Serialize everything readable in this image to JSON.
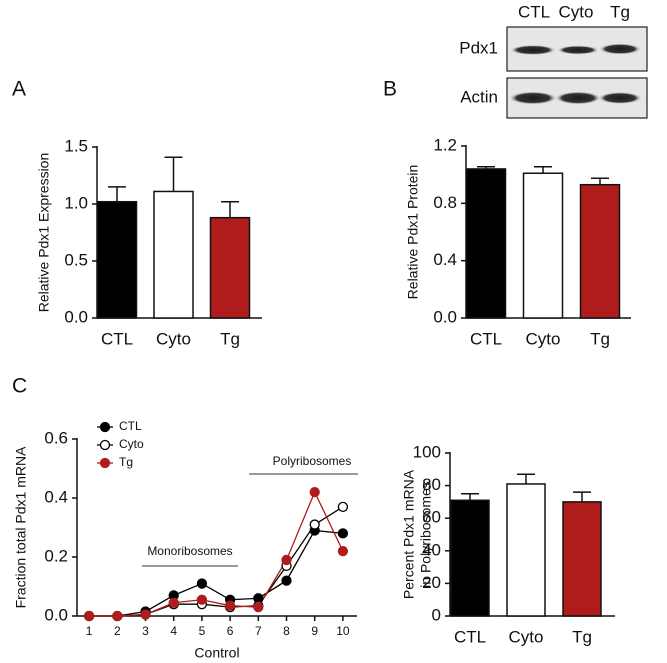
{
  "chart_data": [
    {
      "type": "bar",
      "panel": "A",
      "ylabel": "Relative Pdx1 Expression",
      "categories": [
        "CTL",
        "Cyto",
        "Tg"
      ],
      "values": [
        1.02,
        1.11,
        0.88
      ],
      "errors": [
        0.13,
        0.3,
        0.14
      ],
      "colors": [
        "#000000",
        "#ffffff",
        "#b01c1c"
      ],
      "ylim": [
        0,
        1.5
      ],
      "yticks": [
        {
          "value": 0,
          "label": "0.0"
        },
        {
          "value": 0.5,
          "label": "0.5"
        },
        {
          "value": 1,
          "label": "1.0"
        },
        {
          "value": 1.5,
          "label": "1.5"
        }
      ]
    },
    {
      "type": "bar",
      "panel": "B",
      "ylabel": "Relative Pdx1 Protein",
      "categories": [
        "CTL",
        "Cyto",
        "Tg"
      ],
      "values": [
        1.04,
        1.01,
        0.93
      ],
      "errors": [
        0.015,
        0.045,
        0.045
      ],
      "colors": [
        "#000000",
        "#ffffff",
        "#b01c1c"
      ],
      "ylim": [
        0,
        1.2
      ],
      "yticks": [
        {
          "value": 0,
          "label": "0.0"
        },
        {
          "value": 0.4,
          "label": "0.4"
        },
        {
          "value": 0.8,
          "label": "0.8"
        },
        {
          "value": 1.2,
          "label": "1.2"
        }
      ]
    },
    {
      "type": "line",
      "panel": "C",
      "ylabel": "Fraction total Pdx1 mRNA",
      "xlabel": "Control",
      "x": [
        1,
        2,
        3,
        4,
        5,
        6,
        7,
        8,
        9,
        10
      ],
      "xlim": [
        0.57,
        10.5
      ],
      "xticks": [
        1,
        2,
        3,
        4,
        5,
        6,
        7,
        8,
        9,
        10
      ],
      "ylim": [
        0,
        0.6
      ],
      "yticks": [
        {
          "value": 0,
          "label": "0.0"
        },
        {
          "value": 0.2,
          "label": "0.2"
        },
        {
          "value": 0.4,
          "label": "0.4"
        },
        {
          "value": 0.6,
          "label": "0.6"
        }
      ],
      "series": [
        {
          "name": "CTL",
          "color": "#000000",
          "marker_fill": "#000000",
          "values": [
            0,
            0,
            0.015,
            0.07,
            0.11,
            0.055,
            0.06,
            0.12,
            0.29,
            0.28
          ]
        },
        {
          "name": "Cyto",
          "color": "#000000",
          "marker_fill": "#ffffff",
          "values": [
            0,
            0,
            0.005,
            0.04,
            0.04,
            0.03,
            0.035,
            0.17,
            0.31,
            0.37
          ]
        },
        {
          "name": "Tg",
          "color": "#b01c1c",
          "marker_fill": "#b01c1c",
          "values": [
            0,
            0,
            0.005,
            0.045,
            0.055,
            0.035,
            0.03,
            0.19,
            0.42,
            0.22
          ]
        }
      ],
      "annotations": [
        "Monoribosomes",
        "Polyribosomes"
      ]
    },
    {
      "type": "bar",
      "ylabel": [
        "Percent Pdx1 mRNA",
        "in Polyribosomes"
      ],
      "categories": [
        "CTL",
        "Cyto",
        "Tg"
      ],
      "values": [
        71,
        81,
        70
      ],
      "errors": [
        4,
        6,
        6
      ],
      "colors": [
        "#000000",
        "#ffffff",
        "#b01c1c"
      ],
      "ylim": [
        0,
        100
      ],
      "yticks": [
        0,
        20,
        40,
        60,
        80,
        100
      ]
    }
  ],
  "blot": {
    "lanes": [
      "CTL",
      "Cyto",
      "Tg"
    ],
    "rows": [
      "Pdx1",
      "Actin"
    ]
  }
}
